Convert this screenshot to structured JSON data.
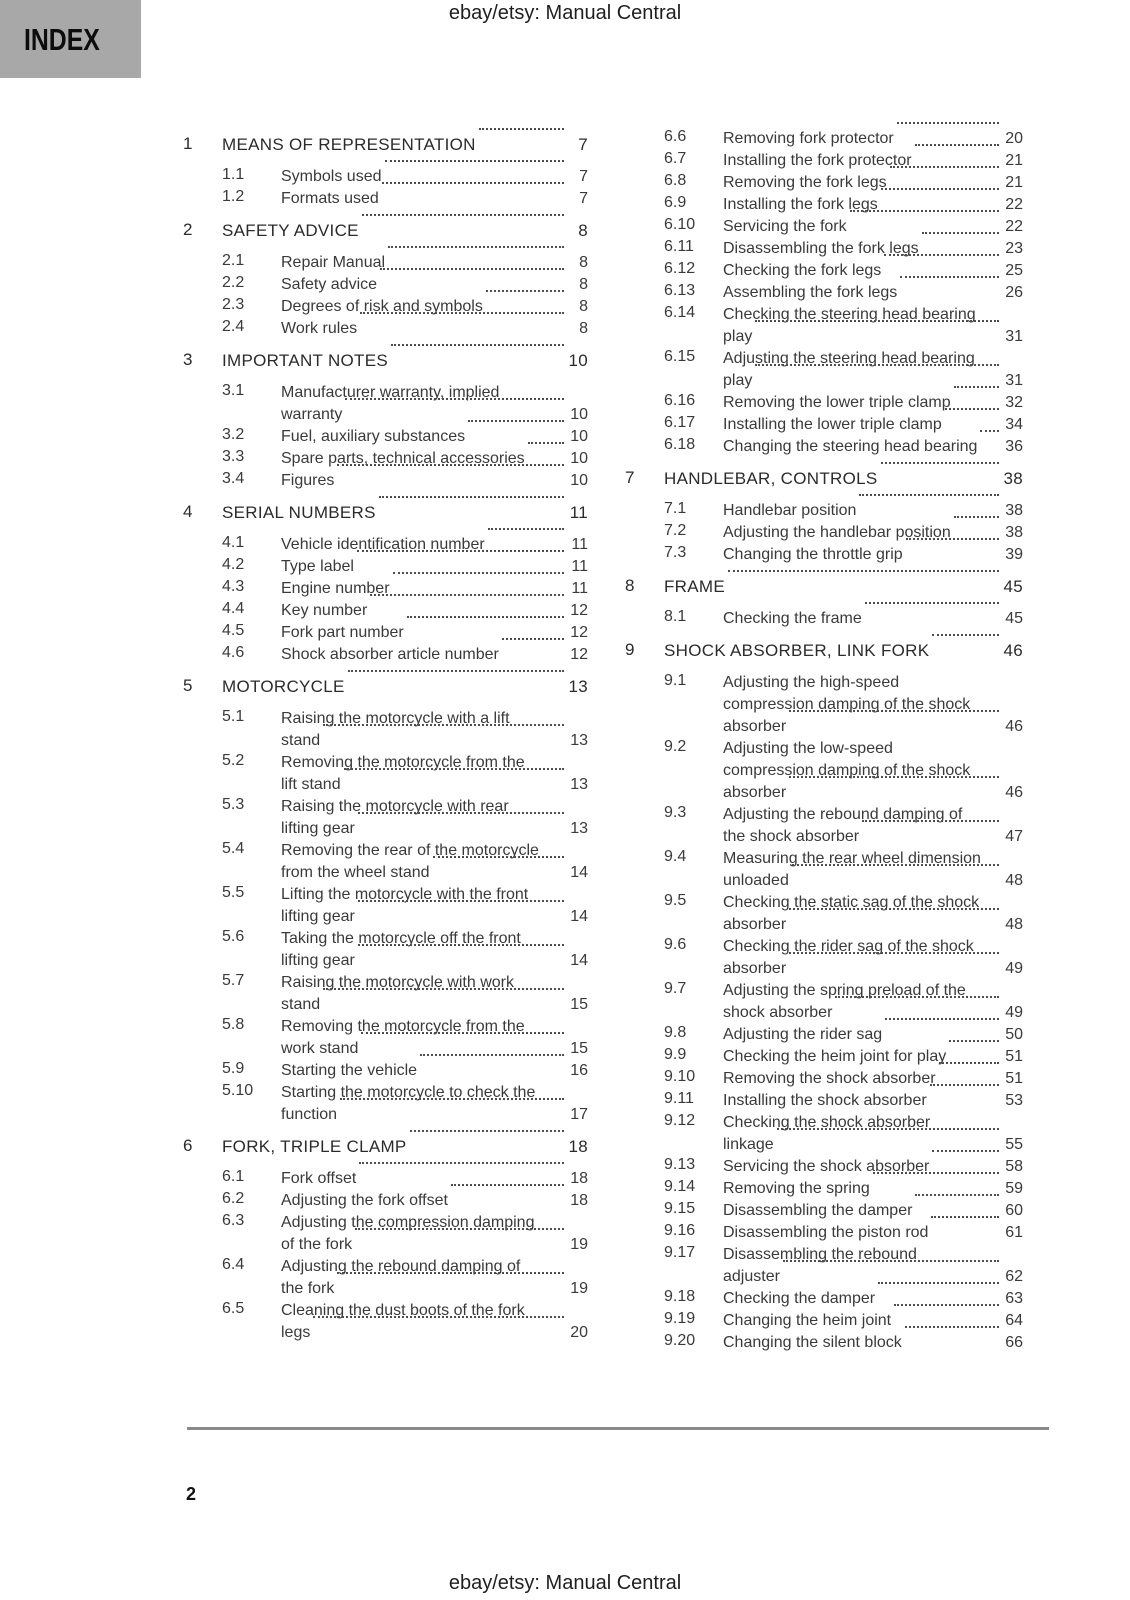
{
  "header": {
    "title": "ebay/etsy: Manual Central"
  },
  "index_tab": {
    "label": "INDEX"
  },
  "footer": {
    "page_number": "2",
    "title": "ebay/etsy: Manual Central"
  },
  "colors": {
    "tab_background": "#a8a8a8",
    "rule": "#8a8a8a",
    "text": "#3a3a3a"
  },
  "toc": {
    "left_column": [
      {
        "level": 1,
        "number": "1",
        "lines": [
          "MEANS OF REPRESENTATION"
        ],
        "page": "7"
      },
      {
        "level": 2,
        "number": "1.1",
        "lines": [
          "Symbols used"
        ],
        "page": "7"
      },
      {
        "level": 2,
        "number": "1.2",
        "lines": [
          "Formats used"
        ],
        "page": "7"
      },
      {
        "level": 1,
        "number": "2",
        "lines": [
          "SAFETY ADVICE"
        ],
        "page": "8"
      },
      {
        "level": 2,
        "number": "2.1",
        "lines": [
          "Repair Manual"
        ],
        "page": "8"
      },
      {
        "level": 2,
        "number": "2.2",
        "lines": [
          "Safety advice"
        ],
        "page": "8"
      },
      {
        "level": 2,
        "number": "2.3",
        "lines": [
          "Degrees of risk and symbols"
        ],
        "page": "8"
      },
      {
        "level": 2,
        "number": "2.4",
        "lines": [
          "Work rules"
        ],
        "page": "8"
      },
      {
        "level": 1,
        "number": "3",
        "lines": [
          "IMPORTANT NOTES"
        ],
        "page": "10"
      },
      {
        "level": 2,
        "number": "3.1",
        "lines": [
          "Manufacturer warranty, implied",
          "warranty"
        ],
        "page": "10"
      },
      {
        "level": 2,
        "number": "3.2",
        "lines": [
          "Fuel, auxiliary substances"
        ],
        "page": "10"
      },
      {
        "level": 2,
        "number": "3.3",
        "lines": [
          "Spare parts, technical accessories"
        ],
        "page": "10"
      },
      {
        "level": 2,
        "number": "3.4",
        "lines": [
          "Figures"
        ],
        "page": "10"
      },
      {
        "level": 1,
        "number": "4",
        "lines": [
          "SERIAL NUMBERS"
        ],
        "page": "11"
      },
      {
        "level": 2,
        "number": "4.1",
        "lines": [
          "Vehicle identification number"
        ],
        "page": "11"
      },
      {
        "level": 2,
        "number": "4.2",
        "lines": [
          "Type label"
        ],
        "page": "11"
      },
      {
        "level": 2,
        "number": "4.3",
        "lines": [
          "Engine number"
        ],
        "page": "11"
      },
      {
        "level": 2,
        "number": "4.4",
        "lines": [
          "Key number"
        ],
        "page": "12"
      },
      {
        "level": 2,
        "number": "4.5",
        "lines": [
          "Fork part number"
        ],
        "page": "12"
      },
      {
        "level": 2,
        "number": "4.6",
        "lines": [
          "Shock absorber article number"
        ],
        "page": "12"
      },
      {
        "level": 1,
        "number": "5",
        "lines": [
          "MOTORCYCLE"
        ],
        "page": "13"
      },
      {
        "level": 2,
        "number": "5.1",
        "lines": [
          "Raising the motorcycle with a lift",
          "stand"
        ],
        "page": "13"
      },
      {
        "level": 2,
        "number": "5.2",
        "lines": [
          "Removing the motorcycle from the",
          "lift stand"
        ],
        "page": "13"
      },
      {
        "level": 2,
        "number": "5.3",
        "lines": [
          "Raising the motorcycle with rear",
          "lifting gear"
        ],
        "page": "13"
      },
      {
        "level": 2,
        "number": "5.4",
        "lines": [
          "Removing the rear of the motorcycle",
          "from the wheel stand"
        ],
        "page": "14"
      },
      {
        "level": 2,
        "number": "5.5",
        "lines": [
          "Lifting the motorcycle with the front",
          "lifting gear"
        ],
        "page": "14"
      },
      {
        "level": 2,
        "number": "5.6",
        "lines": [
          "Taking the motorcycle off the front",
          "lifting gear"
        ],
        "page": "14"
      },
      {
        "level": 2,
        "number": "5.7",
        "lines": [
          "Raising the motorcycle with work",
          "stand"
        ],
        "page": "15"
      },
      {
        "level": 2,
        "number": "5.8",
        "lines": [
          "Removing the motorcycle from the",
          "work stand"
        ],
        "page": "15"
      },
      {
        "level": 2,
        "number": "5.9",
        "lines": [
          "Starting the vehicle"
        ],
        "page": "16"
      },
      {
        "level": 2,
        "number": "5.10",
        "lines": [
          "Starting the motorcycle to check the",
          "function"
        ],
        "page": "17"
      },
      {
        "level": 1,
        "number": "6",
        "lines": [
          "FORK, TRIPLE CLAMP"
        ],
        "page": "18"
      },
      {
        "level": 2,
        "number": "6.1",
        "lines": [
          "Fork offset"
        ],
        "page": "18"
      },
      {
        "level": 2,
        "number": "6.2",
        "lines": [
          "Adjusting the fork offset"
        ],
        "page": "18"
      },
      {
        "level": 2,
        "number": "6.3",
        "lines": [
          "Adjusting the compression damping",
          "of the fork"
        ],
        "page": "19"
      },
      {
        "level": 2,
        "number": "6.4",
        "lines": [
          "Adjusting the rebound damping of",
          "the fork"
        ],
        "page": "19"
      },
      {
        "level": 2,
        "number": "6.5",
        "lines": [
          "Cleaning the dust boots of the fork",
          "legs"
        ],
        "page": "20"
      }
    ],
    "right_column": [
      {
        "level": 2,
        "number": "6.6",
        "lines": [
          "Removing fork protector"
        ],
        "page": "20"
      },
      {
        "level": 2,
        "number": "6.7",
        "lines": [
          "Installing the fork protector"
        ],
        "page": "21"
      },
      {
        "level": 2,
        "number": "6.8",
        "lines": [
          "Removing the fork legs"
        ],
        "page": "21"
      },
      {
        "level": 2,
        "number": "6.9",
        "lines": [
          "Installing the fork legs"
        ],
        "page": "22"
      },
      {
        "level": 2,
        "number": "6.10",
        "lines": [
          "Servicing the fork"
        ],
        "page": "22"
      },
      {
        "level": 2,
        "number": "6.11",
        "lines": [
          "Disassembling the fork legs"
        ],
        "page": "23"
      },
      {
        "level": 2,
        "number": "6.12",
        "lines": [
          "Checking the fork legs"
        ],
        "page": "25"
      },
      {
        "level": 2,
        "number": "6.13",
        "lines": [
          "Assembling the fork legs"
        ],
        "page": "26"
      },
      {
        "level": 2,
        "number": "6.14",
        "lines": [
          "Checking the steering head bearing",
          "play"
        ],
        "page": "31"
      },
      {
        "level": 2,
        "number": "6.15",
        "lines": [
          "Adjusting the steering head bearing",
          "play"
        ],
        "page": "31"
      },
      {
        "level": 2,
        "number": "6.16",
        "lines": [
          "Removing the lower triple clamp"
        ],
        "page": "32"
      },
      {
        "level": 2,
        "number": "6.17",
        "lines": [
          "Installing the lower triple clamp"
        ],
        "page": "34"
      },
      {
        "level": 2,
        "number": "6.18",
        "lines": [
          "Changing the steering head bearing"
        ],
        "page": "36"
      },
      {
        "level": 1,
        "number": "7",
        "lines": [
          "HANDLEBAR, CONTROLS"
        ],
        "page": "38"
      },
      {
        "level": 2,
        "number": "7.1",
        "lines": [
          "Handlebar position"
        ],
        "page": "38"
      },
      {
        "level": 2,
        "number": "7.2",
        "lines": [
          "Adjusting the handlebar position"
        ],
        "page": "38"
      },
      {
        "level": 2,
        "number": "7.3",
        "lines": [
          "Changing the throttle grip"
        ],
        "page": "39"
      },
      {
        "level": 1,
        "number": "8",
        "lines": [
          "FRAME"
        ],
        "page": "45"
      },
      {
        "level": 2,
        "number": "8.1",
        "lines": [
          "Checking the frame"
        ],
        "page": "45"
      },
      {
        "level": 1,
        "number": "9",
        "lines": [
          "SHOCK ABSORBER, LINK FORK"
        ],
        "page": "46"
      },
      {
        "level": 2,
        "number": "9.1",
        "lines": [
          "Adjusting the high-speed",
          "compression damping of the shock",
          "absorber"
        ],
        "page": "46"
      },
      {
        "level": 2,
        "number": "9.2",
        "lines": [
          "Adjusting the low-speed",
          "compression damping of the shock",
          "absorber"
        ],
        "page": "46"
      },
      {
        "level": 2,
        "number": "9.3",
        "lines": [
          "Adjusting the rebound damping of",
          "the shock absorber"
        ],
        "page": "47"
      },
      {
        "level": 2,
        "number": "9.4",
        "lines": [
          "Measuring the rear wheel dimension",
          "unloaded"
        ],
        "page": "48"
      },
      {
        "level": 2,
        "number": "9.5",
        "lines": [
          "Checking the static sag of the shock",
          "absorber"
        ],
        "page": "48"
      },
      {
        "level": 2,
        "number": "9.6",
        "lines": [
          "Checking the rider sag of the shock",
          "absorber"
        ],
        "page": "49"
      },
      {
        "level": 2,
        "number": "9.7",
        "lines": [
          "Adjusting the spring preload of the",
          "shock absorber"
        ],
        "page": "49"
      },
      {
        "level": 2,
        "number": "9.8",
        "lines": [
          "Adjusting the rider sag"
        ],
        "page": "50"
      },
      {
        "level": 2,
        "number": "9.9",
        "lines": [
          "Checking the heim joint for play"
        ],
        "page": "51"
      },
      {
        "level": 2,
        "number": "9.10",
        "lines": [
          "Removing the shock absorber"
        ],
        "page": "51"
      },
      {
        "level": 2,
        "number": "9.11",
        "lines": [
          "Installing the shock absorber"
        ],
        "page": "53"
      },
      {
        "level": 2,
        "number": "9.12",
        "lines": [
          "Checking the shock absorber",
          "linkage"
        ],
        "page": "55"
      },
      {
        "level": 2,
        "number": "9.13",
        "lines": [
          "Servicing the shock absorber"
        ],
        "page": "58"
      },
      {
        "level": 2,
        "number": "9.14",
        "lines": [
          "Removing the spring"
        ],
        "page": "59"
      },
      {
        "level": 2,
        "number": "9.15",
        "lines": [
          "Disassembling the damper"
        ],
        "page": "60"
      },
      {
        "level": 2,
        "number": "9.16",
        "lines": [
          "Disassembling the piston rod"
        ],
        "page": "61"
      },
      {
        "level": 2,
        "number": "9.17",
        "lines": [
          "Disassembling the rebound",
          "adjuster"
        ],
        "page": "62"
      },
      {
        "level": 2,
        "number": "9.18",
        "lines": [
          "Checking the damper"
        ],
        "page": "63"
      },
      {
        "level": 2,
        "number": "9.19",
        "lines": [
          "Changing the heim joint"
        ],
        "page": "64"
      },
      {
        "level": 2,
        "number": "9.20",
        "lines": [
          "Changing the silent block"
        ],
        "page": "66"
      }
    ]
  }
}
